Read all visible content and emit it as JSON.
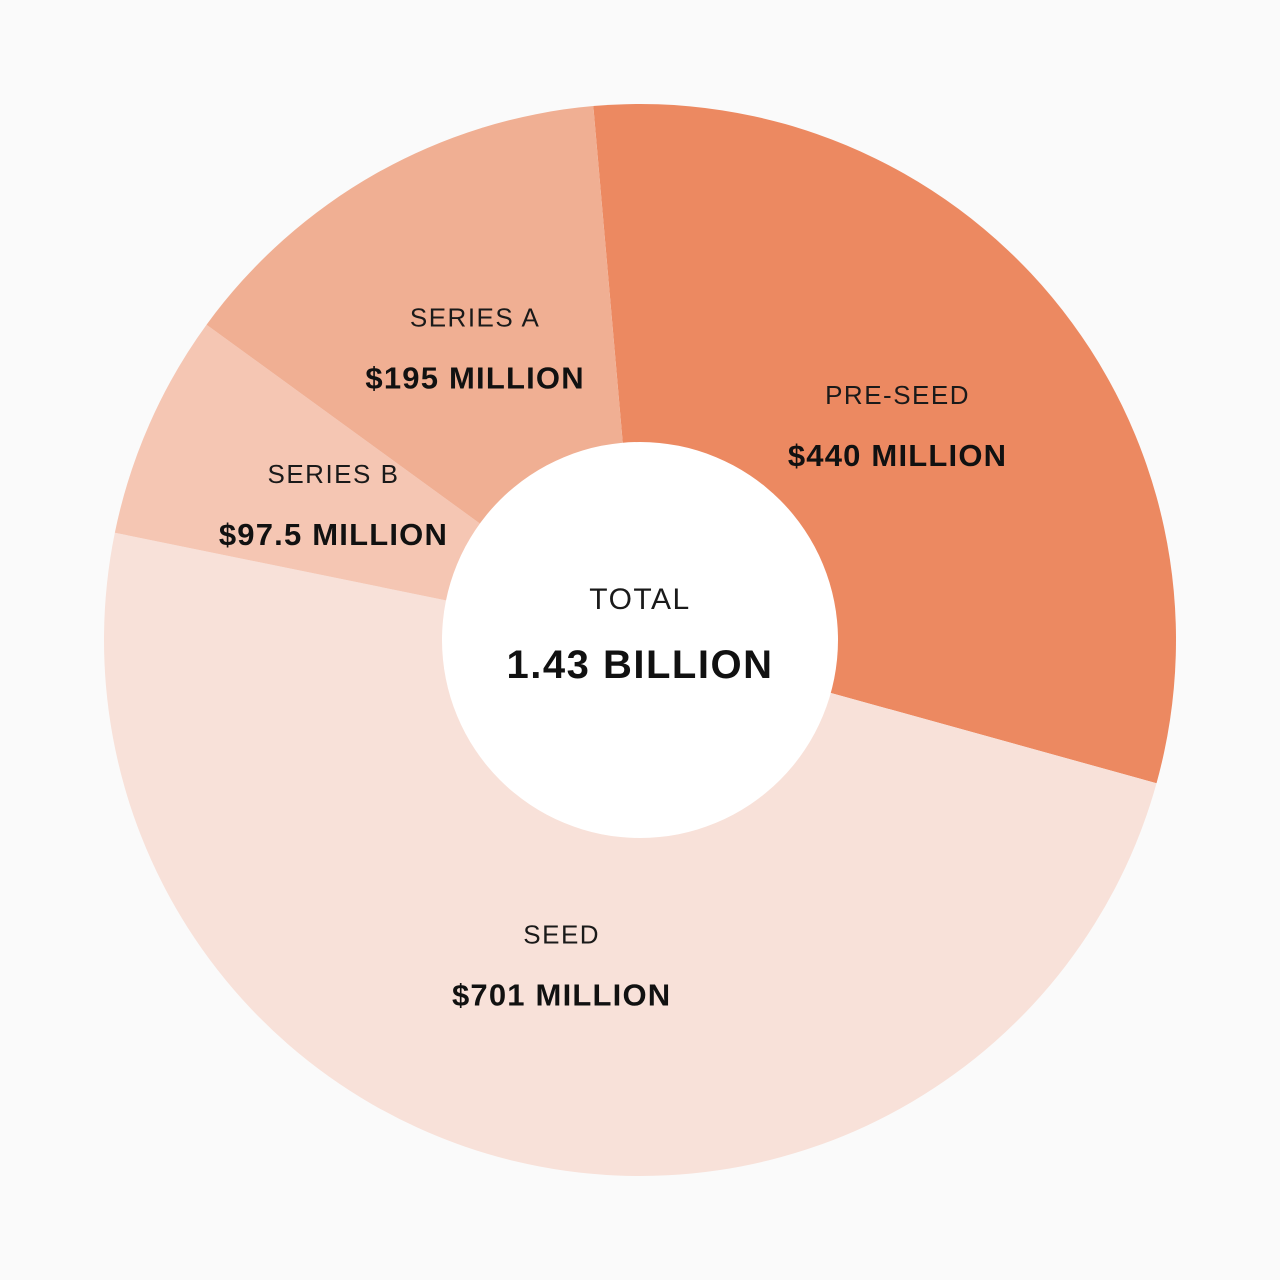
{
  "chart_data": {
    "type": "pie",
    "variant": "donut",
    "center": {
      "label": "TOTAL",
      "value": "1.43 BILLION"
    },
    "slices": [
      {
        "key": "pre-seed",
        "label": "PRE-SEED",
        "value": 440,
        "value_label": "$440 MILLION",
        "color": "#ec8961"
      },
      {
        "key": "seed",
        "label": "SEED",
        "value": 701,
        "value_label": "$701 MILLION",
        "color": "#f8e1d9"
      },
      {
        "key": "series-b",
        "label": "SERIES B",
        "value": 97.5,
        "value_label": "$97.5 MILLION",
        "color": "#f5c6b3"
      },
      {
        "key": "series-a",
        "label": "SERIES A",
        "value": 195,
        "value_label": "$195 MILLION",
        "color": "#f0af93"
      }
    ],
    "units": "million USD",
    "background": "#fafafa",
    "legend": "none"
  }
}
